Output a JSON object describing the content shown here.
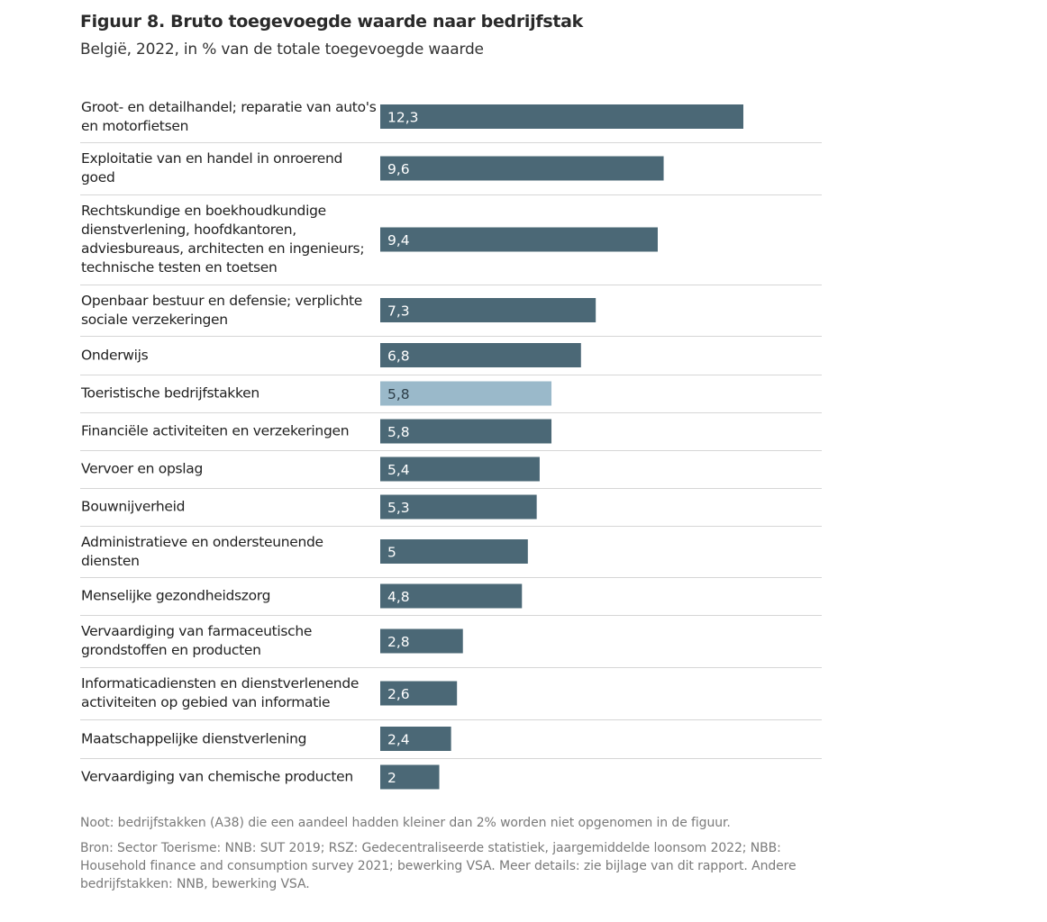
{
  "chart_data": {
    "type": "bar",
    "orientation": "horizontal",
    "title": "Figuur 8. Bruto toegevoegde waarde naar bedrijfstak",
    "subtitle": "België, 2022, in % van de totale toegevoegde waarde",
    "categories": [
      "Groot- en detailhandel; reparatie van auto's en motorfietsen",
      "Exploitatie van en handel in onroerend goed",
      "Rechtskundige en boekhoudkundige dienstverlening, hoofdkantoren, adviesbureaus, architecten en ingenieurs; technische testen en toetsen",
      "Openbaar bestuur en defensie; verplichte sociale verzekeringen",
      "Onderwijs",
      "Toeristische bedrijfstakken",
      "Financiële activiteiten en verzekeringen",
      "Vervoer en opslag",
      "Bouwnijverheid",
      "Administratieve en ondersteunende diensten",
      "Menselijke gezondheidszorg",
      "Vervaardiging van farmaceutische grondstoffen en producten",
      "Informaticadiensten en dienstverlenende activiteiten op gebied van informatie",
      "Maatschappelijke dienstverlening",
      "Vervaardiging van chemische producten"
    ],
    "values": [
      12.3,
      9.6,
      9.4,
      7.3,
      6.8,
      5.8,
      5.8,
      5.4,
      5.3,
      5,
      4.8,
      2.8,
      2.6,
      2.4,
      2
    ],
    "value_labels": [
      "12,3",
      "9,6",
      "9,4",
      "7,3",
      "6,8",
      "5,8",
      "5,8",
      "5,4",
      "5,3",
      "5",
      "4,8",
      "2,8",
      "2,6",
      "2,4",
      "2"
    ],
    "highlight": [
      false,
      false,
      false,
      false,
      false,
      true,
      false,
      false,
      false,
      false,
      false,
      false,
      false,
      false,
      false
    ],
    "xlim": [
      0,
      15
    ],
    "xlabel": "",
    "ylabel": "",
    "grid": false
  },
  "colors": {
    "bar": "#4b6876",
    "highlight": "#9ab9ca",
    "separator": "#d6d6d6",
    "label_on_dark": "#ffffff",
    "label_on_light": "#2d3e48"
  },
  "notes": {
    "note": "Noot: bedrijfstakken (A38) die een aandeel hadden kleiner dan 2% worden niet opgenomen in de figuur.",
    "source": "Bron: Sector Toerisme: NNB: SUT 2019; RSZ: Gedecentraliseerde statistiek, jaargemiddelde loonsom 2022; NBB: Household finance and consumption survey 2021; bewerking VSA. Meer details: zie bijlage van dit rapport. Andere bedrijfstakken: NNB, bewerking VSA."
  }
}
